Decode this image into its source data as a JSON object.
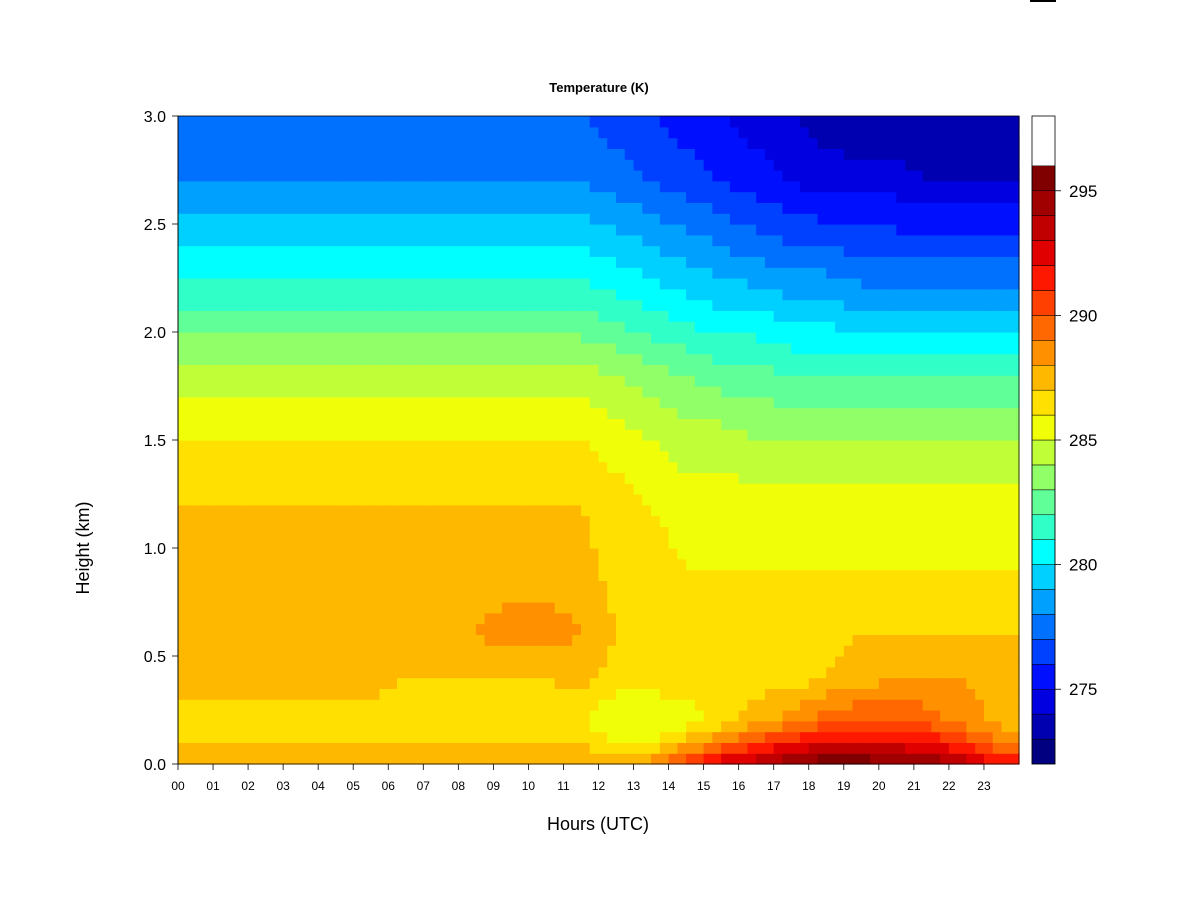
{
  "chart_data": {
    "type": "heatmap",
    "title": "Temperature (K)",
    "xlabel": "Hours (UTC)",
    "ylabel": "Height (km)",
    "xlim": [
      0,
      24
    ],
    "ylim": [
      0.0,
      3.0
    ],
    "x_ticks": [
      "00",
      "01",
      "02",
      "03",
      "04",
      "05",
      "06",
      "07",
      "08",
      "09",
      "10",
      "11",
      "12",
      "13",
      "14",
      "15",
      "16",
      "17",
      "18",
      "19",
      "20",
      "21",
      "22",
      "23"
    ],
    "y_ticks": [
      "0.0",
      "0.5",
      "1.0",
      "1.5",
      "2.0",
      "2.5",
      "3.0"
    ],
    "colorbar": {
      "min": 272,
      "max": 298,
      "step": 1,
      "ticks": [
        "275",
        "280",
        "285",
        "290",
        "295"
      ],
      "colors": [
        "#000080",
        "#0000b0",
        "#0000e0",
        "#0010ff",
        "#0040ff",
        "#0070ff",
        "#00a0ff",
        "#00d0ff",
        "#00ffff",
        "#30ffc8",
        "#60ff98",
        "#90ff68",
        "#c0ff38",
        "#f0ff08",
        "#ffe000",
        "#ffb800",
        "#ff9000",
        "#ff6800",
        "#ff4000",
        "#ff1800",
        "#e00000",
        "#c00000",
        "#a00000",
        "#800000"
      ]
    },
    "grid": false,
    "series": [
      {
        "height_km": 0.0,
        "values": [
          288,
          288,
          288,
          288,
          288,
          288,
          288,
          288,
          288,
          288,
          288,
          288,
          288,
          288.5,
          291,
          293,
          294,
          295,
          296,
          296,
          295,
          295,
          294,
          292
        ]
      },
      {
        "height_km": 0.1,
        "values": [
          287,
          287,
          287,
          287,
          287,
          287,
          287,
          287,
          287,
          287,
          287,
          287,
          286,
          286,
          287.5,
          289,
          290.5,
          291.5,
          292.5,
          292.5,
          292.5,
          292,
          290.5,
          289
        ]
      },
      {
        "height_km": 0.2,
        "values": [
          286.5,
          286.5,
          286.5,
          286.5,
          286.5,
          286.5,
          286,
          286,
          286,
          286,
          286,
          286,
          285,
          285,
          285.5,
          286.5,
          287.5,
          288.5,
          289.5,
          290,
          290,
          289.5,
          288.5,
          287.5
        ]
      },
      {
        "height_km": 0.4,
        "values": [
          287.5,
          287.5,
          287.5,
          287.5,
          287.5,
          287.5,
          287,
          287,
          287,
          287,
          287,
          287.5,
          286.5,
          286.5,
          286.5,
          286.5,
          286.5,
          286.5,
          287,
          287.5,
          288,
          288,
          288,
          287.5
        ]
      },
      {
        "height_km": 0.6,
        "values": [
          288,
          288,
          288,
          288,
          288,
          288,
          288,
          288,
          288,
          288.5,
          288.5,
          288,
          287,
          287,
          286.5,
          286.5,
          286.5,
          286.5,
          286.5,
          287,
          287,
          287,
          287,
          287
        ]
      },
      {
        "height_km": 0.9,
        "values": [
          287.5,
          287.5,
          287.5,
          287.5,
          287.5,
          287.5,
          287.5,
          287.5,
          287.5,
          287.5,
          287.5,
          287.5,
          286.5,
          286.5,
          286,
          286,
          286,
          286,
          286,
          286,
          286,
          286,
          286,
          286
        ]
      },
      {
        "height_km": 1.2,
        "values": [
          287,
          287,
          287,
          287,
          287,
          287,
          287,
          287,
          287,
          287,
          287,
          287,
          286.5,
          286,
          285.5,
          285.5,
          285.5,
          285.5,
          285.5,
          285.5,
          285.5,
          285.5,
          285.5,
          285.5
        ]
      },
      {
        "height_km": 1.5,
        "values": [
          286,
          286,
          286,
          286,
          286,
          286,
          286,
          286,
          286,
          286,
          286,
          286,
          285.5,
          285,
          284.5,
          284.5,
          284,
          284,
          284,
          284,
          284,
          284,
          284,
          284
        ]
      },
      {
        "height_km": 1.8,
        "values": [
          284.5,
          284.5,
          284.5,
          284.5,
          284.5,
          284.5,
          284.5,
          284.5,
          284.5,
          284.5,
          284.5,
          284.5,
          284,
          283.5,
          283,
          282.5,
          282.5,
          282,
          282,
          282,
          282,
          282,
          282,
          282
        ]
      },
      {
        "height_km": 2.1,
        "values": [
          282,
          282,
          282,
          282,
          282,
          282,
          282,
          282,
          282,
          282,
          282,
          282,
          281.5,
          281,
          280.5,
          280,
          280,
          279.5,
          279.5,
          279,
          279,
          279,
          279,
          279
        ]
      },
      {
        "height_km": 2.4,
        "values": [
          280,
          280,
          280,
          280,
          280,
          280,
          280,
          280,
          280,
          280,
          280,
          280,
          279.5,
          279,
          278.5,
          278,
          277.5,
          277,
          277,
          276.5,
          276.5,
          276.5,
          276.5,
          276.5
        ]
      },
      {
        "height_km": 2.7,
        "values": [
          278,
          278,
          278,
          278,
          278,
          278,
          278,
          278,
          278,
          278,
          278,
          278,
          277.5,
          277,
          276.5,
          276,
          275.5,
          275,
          274.5,
          274.5,
          274.5,
          274,
          274,
          274
        ]
      },
      {
        "height_km": 3.0,
        "values": [
          277,
          277,
          277,
          277,
          277,
          277,
          277,
          277,
          277,
          277,
          277,
          277,
          276.5,
          276,
          275.5,
          275,
          274.5,
          274,
          273.5,
          273,
          273,
          273,
          273,
          273
        ]
      }
    ]
  }
}
